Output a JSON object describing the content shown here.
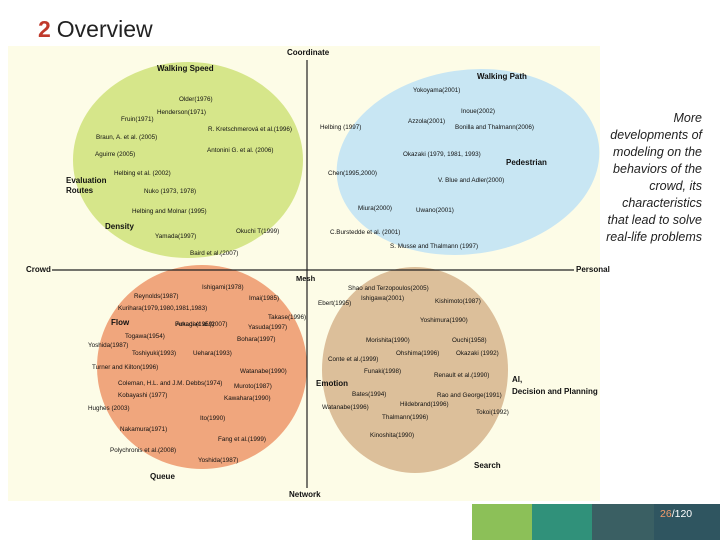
{
  "slide": {
    "number": "2",
    "title": "Overview",
    "side_note": "More developments of modeling on the behaviors of the crowd, its characteristics that lead to solve real-life problems",
    "page_current": "26",
    "page_total": "/120"
  },
  "colors": {
    "panel_bg": "#fdfce7",
    "green_blob": "#d6e68a",
    "blue_blob": "#c8e6f3",
    "orange_blob": "#f0a67d",
    "tan_blob": "#dcbf9a",
    "footer_green": "#8cc058",
    "footer_teal": "#30917a",
    "footer_dark": "#3a5f63",
    "footer_slate": "#2f5560"
  },
  "axes": {
    "top": "Coordinate",
    "bottom": "Network",
    "left": "Crowd",
    "right": "Personal",
    "center": "Mesh"
  },
  "regions": {
    "walking_speed": "Walking Speed",
    "evaluation_routes": "Evaluation Routes",
    "density": "Density",
    "walking_path": "Walking Path",
    "pedestrian": "Pedestrian",
    "flow": "Flow",
    "queue": "Queue",
    "emotion": "Emotion",
    "ai": "AI, Decision and Planning",
    "search": "Search"
  },
  "refs": {
    "green": [
      "Older(1976)",
      "Fruin(1971)",
      "Henderson(1971)",
      "Braun, A. et al. (2005)",
      "Aguirre (2005)",
      "Helbing et al. (2002)",
      "Nuko (1973, 1978)",
      "Helbing and Molnar (1995)",
      "Yamada(1997)",
      "Baird et al.(2007)",
      "Okuchi T(1999)",
      "Antonini G. et al. (2006)",
      "R. Kretschmerová et al.(1996)"
    ],
    "blue": [
      "Yokoyama(2001)",
      "Inoue(2002)",
      "Helbing (1997)",
      "Azzola(2001)",
      "Bonilla and Thalmann(2006)",
      "Okazaki (1979, 1981, 1993)",
      "Chen(1995,2000)",
      "V. Blue and Adler(2000)",
      "Miura(2000)",
      "Uwano(2001)",
      "C.Burstedde et al. (2001)",
      "S. Musse and Thalmann (1997)"
    ],
    "orange": [
      "Ishigami(1978)",
      "Reynolds(1987)",
      "Imai(1985)",
      "Kurihara(1979,1980,1981,1983)",
      "Takase(1996)",
      "Togawa(1954)",
      "Fukada(1959)",
      "Yoshida(1987)",
      "Toshiyuki(1993)",
      "Bohara(1997)",
      "Turner and Kilton(1996)",
      "Coleman, H.L. and J.M. Debbs(1974)",
      "Kobayashi (1977)",
      "Hughes (2003)",
      "Nakamura(1971)",
      "Polychronis et al.(2008)",
      "Yoshida(1987)",
      "Fang et al.(1999)",
      "Ito(1990)",
      "Kawahara(1990)",
      "Muroto(1987)",
      "Watanabe(1990)",
      "Uehara(1993)",
      "Amagi et al.(2007)",
      "Yasuda(1997)"
    ],
    "tan": [
      "Shao and Terzopoulos(2005)",
      "Ishigawa(2001)",
      "Kishimoto(1987)",
      "Ebert(1995)",
      "Yoshimura(1990)",
      "Morishita(1990)",
      "Ouchi(1958)",
      "Ohshima(1996)",
      "Okazaki (1992)",
      "Conte et al.(1999)",
      "Funaki(1998)",
      "Renault et al.(1990)",
      "Bates(1994)",
      "Rao and George(1991)",
      "Watanabe(1996)",
      "Hildebrand(1996)",
      "Thalmann(1996)",
      "Tokoi(1992)",
      "Kinoshita(1990)"
    ]
  }
}
